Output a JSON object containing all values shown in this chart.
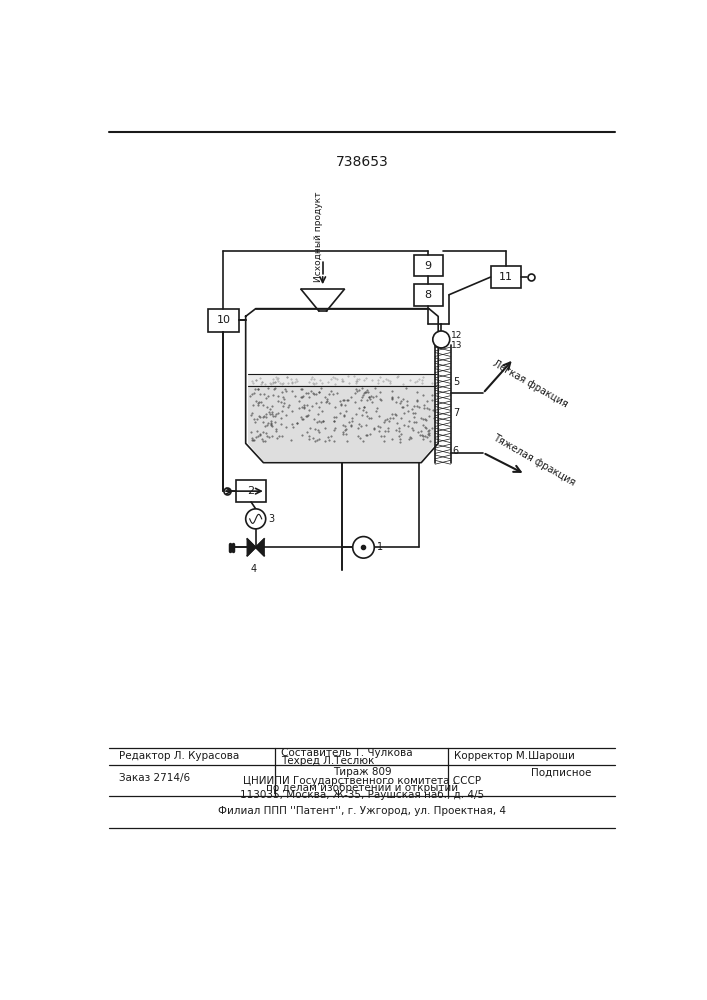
{
  "patent_number": "738653",
  "bg_color": "#ffffff",
  "line_color": "#1a1a1a",
  "fig_width": 7.07,
  "fig_height": 10.0,
  "bottom_text_col1": "Редактор Л. Курасова",
  "bottom_text_col2_line1": "Составитель Т. Чулкова",
  "bottom_text_col2_line2": "Техред Л.Теслюк",
  "bottom_text_col3": "Корректор М.Шароши",
  "bottom_order": "Заказ 2714/6",
  "bottom_tirazh": "Тираж 809",
  "bottom_podpisnoe": "Подписное",
  "bottom_org1": "ЦНИИПИ Государственного комитета СССР",
  "bottom_org2": "по делам изобретений и открытий",
  "bottom_org3": "113035, Москва, Ж-35, Раушская наб., д. 4/5",
  "bottom_filial": "Филиал ППП ''Патент'', г. Ужгород, ул. Проектная, 4",
  "label_ishodny": "Исходный\nпродукт",
  "label_legkaya": "Легкая фракция",
  "label_tyazhelaya": "Тяжелая фракция"
}
